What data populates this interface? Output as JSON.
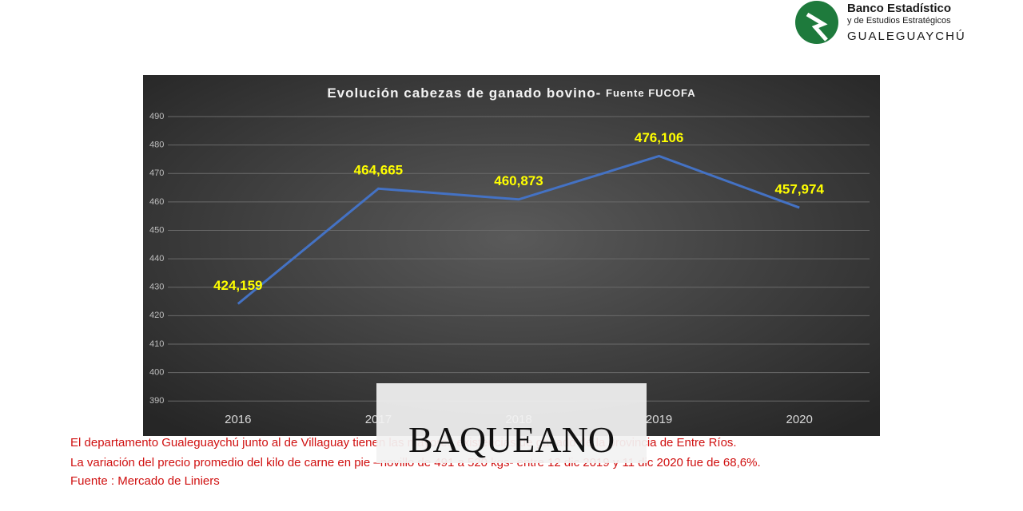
{
  "logo": {
    "line1": "Banco Estadístico",
    "line2": "y de Estudios Estratégicos",
    "line3": "GUALEGUAYCHÚ"
  },
  "chart_data": {
    "type": "line",
    "title": "Evolución cabezas de ganado bovino- ",
    "subtitle": "Fuente FUCOFA",
    "categories": [
      "2016",
      "2017",
      "2018",
      "2019",
      "2020"
    ],
    "series": [
      {
        "color": "#4472c4",
        "values": [
          424.159,
          464.665,
          460.873,
          476.106,
          457.974
        ],
        "value_labels": [
          "424,159",
          "464,665",
          "460,873",
          "476,106",
          "457,974"
        ]
      }
    ],
    "ylim": [
      385,
      490
    ],
    "yticks": [
      390,
      400,
      410,
      420,
      430,
      440,
      450,
      460,
      470,
      480,
      490
    ],
    "grid": true
  },
  "footer": [
    "El departamento Gualeguaychú junto al de Villaguay tienen las mayores existencias de ganado de la provincia de Entre Ríos.",
    " La variación del precio promedio del kilo de carne en pie –novillo de 491 a 520 kgs- entre 12 dic 2019 y 11 dic 2020 fue de 68,6%.",
    "Fuente : Mercado de Liniers"
  ],
  "watermark": "BAQUEANO"
}
